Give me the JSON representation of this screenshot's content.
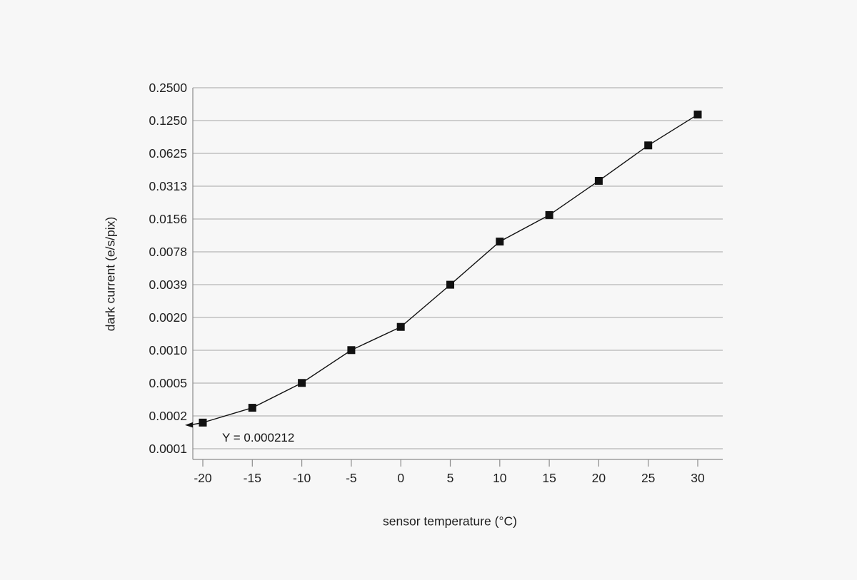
{
  "chart_data": {
    "type": "line",
    "title": "",
    "xlabel": "sensor temperature (°C)",
    "ylabel": "dark current (e/s/pix)",
    "x": [
      -20,
      -15,
      -10,
      -5,
      0,
      5,
      10,
      15,
      20,
      25,
      30
    ],
    "series": [
      {
        "name": "dark current",
        "values": [
          0.000212,
          0.00029,
          0.00049,
          0.00098,
          0.0016,
          0.0039,
          0.0097,
          0.017,
          0.035,
          0.074,
          0.142
        ]
      }
    ],
    "x_tick_labels": [
      "-20",
      "-15",
      "-10",
      "-5",
      "0",
      "5",
      "10",
      "15",
      "20",
      "25",
      "30"
    ],
    "y_tick_labels": [
      "0.2500",
      "0.1250",
      "0.0625",
      "0.0313",
      "0.0156",
      "0.0078",
      "0.0039",
      "0.0020",
      "0.0010",
      "0.0005",
      "0.0002",
      "0.0001"
    ],
    "y_tick_top_value": 0.25,
    "y_scale": "log2",
    "xlim": [
      -21,
      32.5
    ],
    "grid": "horizontal",
    "legend": "none",
    "marker": "filled-square",
    "annotation": {
      "text": "Y = 0.000212",
      "x": -20,
      "y": 0.000212,
      "arrow": "points-left-to-y-axis"
    },
    "colors": {
      "background": "#f7f7f7",
      "gridline": "#a6a6a6",
      "axis": "#8c8c8c",
      "line": "#111111",
      "marker": "#111111",
      "text": "#1f1f1f"
    }
  }
}
